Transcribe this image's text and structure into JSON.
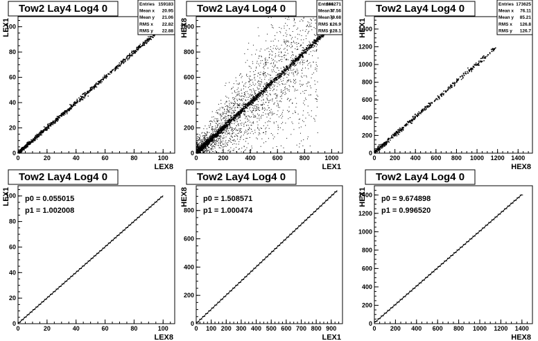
{
  "chart_data": [
    {
      "type": "scatter",
      "title": "Tow2 Lay4 Log4 0",
      "xlabel": "LEX8",
      "ylabel": "LEX1",
      "xlim": [
        0,
        108
      ],
      "ylim": [
        0,
        108
      ],
      "xticks": [
        0,
        20,
        40,
        60,
        80,
        100
      ],
      "yticks": [
        0,
        20,
        40,
        60,
        80,
        100
      ],
      "stats": {
        "Entries": "159183",
        "Mean x": "20.95",
        "Mean y": "21.06",
        "RMS x": "22.82",
        "RMS y": "22.88"
      },
      "slope": 1.0,
      "intercept": 0.0,
      "x_range": [
        0,
        100
      ],
      "spread": 0.8,
      "outliers": 0,
      "n_points": 900
    },
    {
      "type": "scatter",
      "title": "Tow2 Lay4 Log4 0",
      "xlabel": "LEX1",
      "ylabel": "HEX8",
      "xlim": [
        0,
        1080
      ],
      "ylim": [
        0,
        1080
      ],
      "xticks": [
        0,
        200,
        400,
        600,
        800,
        1000
      ],
      "yticks": [
        0,
        200,
        400,
        600,
        800,
        1000
      ],
      "stats": {
        "Entries": "166271",
        "Mean x": "77.56",
        "Mean y": "79.68",
        "RMS x": "126.9",
        "RMS y": "128.1"
      },
      "slope": 1.0,
      "intercept": 0.0,
      "x_range": [
        0,
        1000
      ],
      "spread": 10,
      "outliers": 2200,
      "n_points": 1400
    },
    {
      "type": "scatter",
      "title": "Tow2 Lay4 Log4 0",
      "xlabel": "HEX8",
      "ylabel": "HEX1",
      "xlim": [
        0,
        1540
      ],
      "ylim": [
        0,
        1540
      ],
      "xticks": [
        0,
        200,
        400,
        600,
        800,
        1000,
        1200,
        1400
      ],
      "yticks": [
        0,
        200,
        400,
        600,
        800,
        1000,
        1200,
        1400
      ],
      "stats": {
        "Entries": "173625",
        "Mean x": "76.11",
        "Mean y": "85.21",
        "RMS x": "126.8",
        "RMS y": "126.7"
      },
      "slope": 1.0,
      "intercept": 8.0,
      "x_range": [
        0,
        1200
      ],
      "spread": 12,
      "outliers": 0,
      "n_points": 500
    },
    {
      "type": "line",
      "title": "Tow2 Lay4 Log4 0",
      "xlabel": "LEX8",
      "ylabel": "LEX1",
      "xlim": [
        0,
        108
      ],
      "ylim": [
        0,
        108
      ],
      "xticks": [
        0,
        20,
        40,
        60,
        80,
        100
      ],
      "yticks": [
        0,
        20,
        40,
        60,
        80,
        100
      ],
      "fit": {
        "p0_label": "p0 = 0.055015",
        "p1_label": "p1 = 1.002008"
      },
      "p0": 0.055015,
      "p1": 1.002008,
      "x_range": [
        0,
        100
      ],
      "step": 2
    },
    {
      "type": "line",
      "title": "Tow2 Lay4 Log4 0",
      "xlabel": "LEX1",
      "ylabel": "HEX8",
      "xlim": [
        0,
        975
      ],
      "ylim": [
        0,
        975
      ],
      "xticks": [
        0,
        100,
        200,
        300,
        400,
        500,
        600,
        700,
        800,
        900
      ],
      "yticks": [
        0,
        200,
        400,
        600,
        800
      ],
      "fit": {
        "p0_label": "p0 = 1.508571",
        "p1_label": "p1 = 1.000474"
      },
      "p0": 1.508571,
      "p1": 1.000474,
      "x_range": [
        0,
        940
      ],
      "step": 20
    },
    {
      "type": "line",
      "title": "Tow2 Lay4 Log4 0",
      "xlabel": "HEX8",
      "ylabel": "HEX1",
      "xlim": [
        0,
        1500
      ],
      "ylim": [
        0,
        1500
      ],
      "xticks": [
        0,
        200,
        400,
        600,
        800,
        1000,
        1200,
        1400
      ],
      "yticks": [
        0,
        200,
        400,
        600,
        800,
        1000,
        1200,
        1400
      ],
      "fit": {
        "p0_label": "p0 = 9.674898",
        "p1_label": "p1 = 0.996520"
      },
      "p0": 9.674898,
      "p1": 0.99652,
      "x_range": [
        0,
        1400
      ],
      "step": 30
    }
  ]
}
